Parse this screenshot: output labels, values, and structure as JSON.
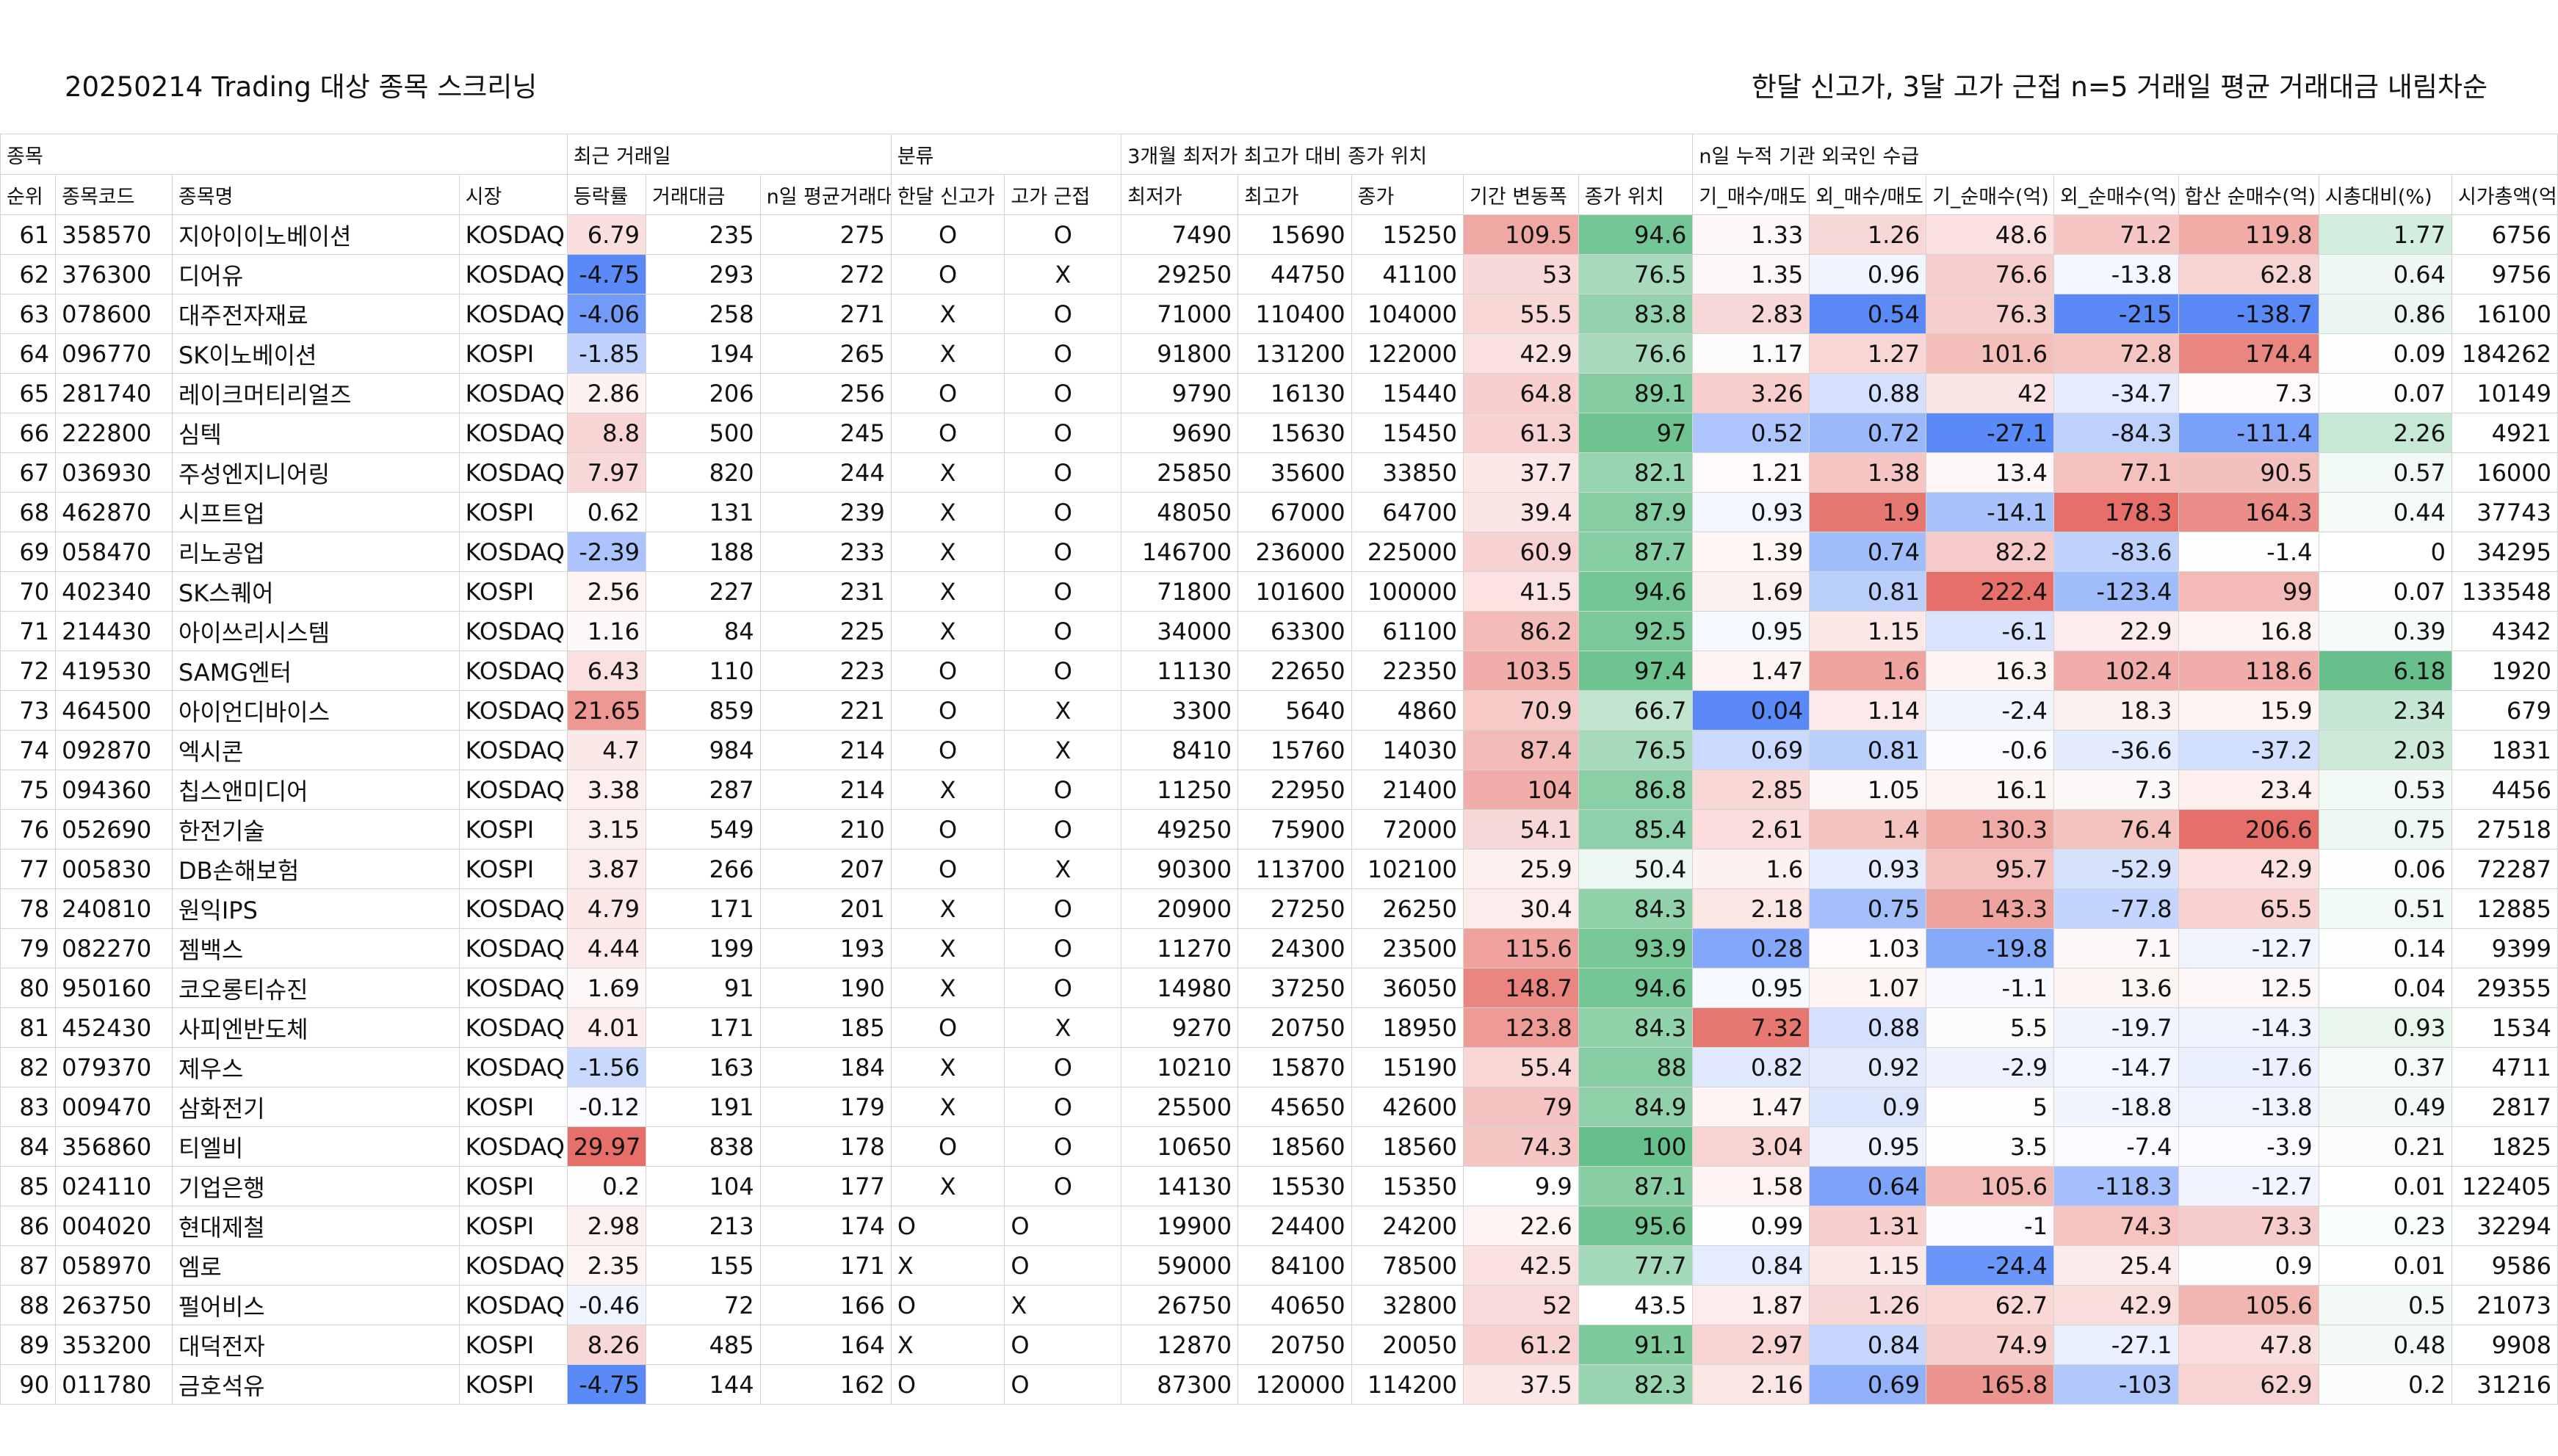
{
  "title_left": "20250214 Trading 대상 종목 스크리닝",
  "title_right": "한달 신고가, 3달 고가 근접 n=5 거래일 평균 거래대금 내림차순",
  "groups": [
    {
      "label": "종목",
      "span": 4
    },
    {
      "label": "최근 거래일",
      "span": 3
    },
    {
      "label": "분류",
      "span": 2
    },
    {
      "label": "3개월 최저가 최고가 대비 종가 위치",
      "span": 5
    },
    {
      "label": "n일 누적 기관 외국인 수급",
      "span": 7
    }
  ],
  "columns": [
    "순위",
    "종목코드",
    "종목명",
    "시장",
    "등락률",
    "거래대금",
    "n일 평균거래대금",
    "한달 신고가",
    "고가 근접",
    "최저가",
    "최고가",
    "종가",
    "기간 변동폭",
    "종가 위치",
    "기_매수/매도",
    "외_매수/매도",
    "기_순매수(억)",
    "외_순매수(억)",
    "합산 순매수(억)",
    "시총대비(%)",
    "시가총액(억)"
  ],
  "rows": [
    [
      "61",
      "358570",
      "지아이이노베이션",
      "KOSDAQ",
      "6.79",
      "235",
      "275",
      "O",
      "O",
      "7490",
      "15690",
      "15250",
      "109.5",
      "94.6",
      "1.33",
      "1.26",
      "48.6",
      "71.2",
      "119.8",
      "1.77",
      "6756"
    ],
    [
      "62",
      "376300",
      "디어유",
      "KOSDAQ",
      "-4.75",
      "293",
      "272",
      "O",
      "X",
      "29250",
      "44750",
      "41100",
      "53",
      "76.5",
      "1.35",
      "0.96",
      "76.6",
      "-13.8",
      "62.8",
      "0.64",
      "9756"
    ],
    [
      "63",
      "078600",
      "대주전자재료",
      "KOSDAQ",
      "-4.06",
      "258",
      "271",
      "X",
      "O",
      "71000",
      "110400",
      "104000",
      "55.5",
      "83.8",
      "2.83",
      "0.54",
      "76.3",
      "-215",
      "-138.7",
      "0.86",
      "16100"
    ],
    [
      "64",
      "096770",
      "SK이노베이션",
      "KOSPI",
      "-1.85",
      "194",
      "265",
      "X",
      "O",
      "91800",
      "131200",
      "122000",
      "42.9",
      "76.6",
      "1.17",
      "1.27",
      "101.6",
      "72.8",
      "174.4",
      "0.09",
      "184262"
    ],
    [
      "65",
      "281740",
      "레이크머티리얼즈",
      "KOSDAQ",
      "2.86",
      "206",
      "256",
      "O",
      "O",
      "9790",
      "16130",
      "15440",
      "64.8",
      "89.1",
      "3.26",
      "0.88",
      "42",
      "-34.7",
      "7.3",
      "0.07",
      "10149"
    ],
    [
      "66",
      "222800",
      "심텍",
      "KOSDAQ",
      "8.8",
      "500",
      "245",
      "O",
      "O",
      "9690",
      "15630",
      "15450",
      "61.3",
      "97",
      "0.52",
      "0.72",
      "-27.1",
      "-84.3",
      "-111.4",
      "2.26",
      "4921"
    ],
    [
      "67",
      "036930",
      "주성엔지니어링",
      "KOSDAQ",
      "7.97",
      "820",
      "244",
      "X",
      "O",
      "25850",
      "35600",
      "33850",
      "37.7",
      "82.1",
      "1.21",
      "1.38",
      "13.4",
      "77.1",
      "90.5",
      "0.57",
      "16000"
    ],
    [
      "68",
      "462870",
      "시프트업",
      "KOSPI",
      "0.62",
      "131",
      "239",
      "X",
      "O",
      "48050",
      "67000",
      "64700",
      "39.4",
      "87.9",
      "0.93",
      "1.9",
      "-14.1",
      "178.3",
      "164.3",
      "0.44",
      "37743"
    ],
    [
      "69",
      "058470",
      "리노공업",
      "KOSDAQ",
      "-2.39",
      "188",
      "233",
      "X",
      "O",
      "146700",
      "236000",
      "225000",
      "60.9",
      "87.7",
      "1.39",
      "0.74",
      "82.2",
      "-83.6",
      "-1.4",
      "0",
      "34295"
    ],
    [
      "70",
      "402340",
      "SK스퀘어",
      "KOSPI",
      "2.56",
      "227",
      "231",
      "X",
      "O",
      "71800",
      "101600",
      "100000",
      "41.5",
      "94.6",
      "1.69",
      "0.81",
      "222.4",
      "-123.4",
      "99",
      "0.07",
      "133548"
    ],
    [
      "71",
      "214430",
      "아이쓰리시스템",
      "KOSDAQ",
      "1.16",
      "84",
      "225",
      "X",
      "O",
      "34000",
      "63300",
      "61100",
      "86.2",
      "92.5",
      "0.95",
      "1.15",
      "-6.1",
      "22.9",
      "16.8",
      "0.39",
      "4342"
    ],
    [
      "72",
      "419530",
      "SAMG엔터",
      "KOSDAQ",
      "6.43",
      "110",
      "223",
      "O",
      "O",
      "11130",
      "22650",
      "22350",
      "103.5",
      "97.4",
      "1.47",
      "1.6",
      "16.3",
      "102.4",
      "118.6",
      "6.18",
      "1920"
    ],
    [
      "73",
      "464500",
      "아이언디바이스",
      "KOSDAQ",
      "21.65",
      "859",
      "221",
      "O",
      "X",
      "3300",
      "5640",
      "4860",
      "70.9",
      "66.7",
      "0.04",
      "1.14",
      "-2.4",
      "18.3",
      "15.9",
      "2.34",
      "679"
    ],
    [
      "74",
      "092870",
      "엑시콘",
      "KOSDAQ",
      "4.7",
      "984",
      "214",
      "O",
      "X",
      "8410",
      "15760",
      "14030",
      "87.4",
      "76.5",
      "0.69",
      "0.81",
      "-0.6",
      "-36.6",
      "-37.2",
      "2.03",
      "1831"
    ],
    [
      "75",
      "094360",
      "칩스앤미디어",
      "KOSDAQ",
      "3.38",
      "287",
      "214",
      "X",
      "O",
      "11250",
      "22950",
      "21400",
      "104",
      "86.8",
      "2.85",
      "1.05",
      "16.1",
      "7.3",
      "23.4",
      "0.53",
      "4456"
    ],
    [
      "76",
      "052690",
      "한전기술",
      "KOSPI",
      "3.15",
      "549",
      "210",
      "O",
      "O",
      "49250",
      "75900",
      "72000",
      "54.1",
      "85.4",
      "2.61",
      "1.4",
      "130.3",
      "76.4",
      "206.6",
      "0.75",
      "27518"
    ],
    [
      "77",
      "005830",
      "DB손해보험",
      "KOSPI",
      "3.87",
      "266",
      "207",
      "O",
      "X",
      "90300",
      "113700",
      "102100",
      "25.9",
      "50.4",
      "1.6",
      "0.93",
      "95.7",
      "-52.9",
      "42.9",
      "0.06",
      "72287"
    ],
    [
      "78",
      "240810",
      "원익IPS",
      "KOSDAQ",
      "4.79",
      "171",
      "201",
      "X",
      "O",
      "20900",
      "27250",
      "26250",
      "30.4",
      "84.3",
      "2.18",
      "0.75",
      "143.3",
      "-77.8",
      "65.5",
      "0.51",
      "12885"
    ],
    [
      "79",
      "082270",
      "젬백스",
      "KOSDAQ",
      "4.44",
      "199",
      "193",
      "X",
      "O",
      "11270",
      "24300",
      "23500",
      "115.6",
      "93.9",
      "0.28",
      "1.03",
      "-19.8",
      "7.1",
      "-12.7",
      "0.14",
      "9399"
    ],
    [
      "80",
      "950160",
      "코오롱티슈진",
      "KOSDAQ",
      "1.69",
      "91",
      "190",
      "X",
      "O",
      "14980",
      "37250",
      "36050",
      "148.7",
      "94.6",
      "0.95",
      "1.07",
      "-1.1",
      "13.6",
      "12.5",
      "0.04",
      "29355"
    ],
    [
      "81",
      "452430",
      "사피엔반도체",
      "KOSDAQ",
      "4.01",
      "171",
      "185",
      "O",
      "X",
      "9270",
      "20750",
      "18950",
      "123.8",
      "84.3",
      "7.32",
      "0.88",
      "5.5",
      "-19.7",
      "-14.3",
      "0.93",
      "1534"
    ],
    [
      "82",
      "079370",
      "제우스",
      "KOSDAQ",
      "-1.56",
      "163",
      "184",
      "X",
      "O",
      "10210",
      "15870",
      "15190",
      "55.4",
      "88",
      "0.82",
      "0.92",
      "-2.9",
      "-14.7",
      "-17.6",
      "0.37",
      "4711"
    ],
    [
      "83",
      "009470",
      "삼화전기",
      "KOSPI",
      "-0.12",
      "191",
      "179",
      "X",
      "O",
      "25500",
      "45650",
      "42600",
      "79",
      "84.9",
      "1.47",
      "0.9",
      "5",
      "-18.8",
      "-13.8",
      "0.49",
      "2817"
    ],
    [
      "84",
      "356860",
      "티엘비",
      "KOSDAQ",
      "29.97",
      "838",
      "178",
      "O",
      "O",
      "10650",
      "18560",
      "18560",
      "74.3",
      "100",
      "3.04",
      "0.95",
      "3.5",
      "-7.4",
      "-3.9",
      "0.21",
      "1825"
    ],
    [
      "85",
      "024110",
      "기업은행",
      "KOSPI",
      "0.2",
      "104",
      "177",
      "X",
      "O",
      "14130",
      "15530",
      "15350",
      "9.9",
      "87.1",
      "1.58",
      "0.64",
      "105.6",
      "-118.3",
      "-12.7",
      "0.01",
      "122405"
    ],
    [
      "86",
      "004020",
      "현대제철",
      "KOSPI",
      "2.98",
      "213",
      "174",
      "O",
      "O",
      "19900",
      "24400",
      "24200",
      "22.6",
      "95.6",
      "0.99",
      "1.31",
      "-1",
      "74.3",
      "73.3",
      "0.23",
      "32294"
    ],
    [
      "87",
      "058970",
      "엠로",
      "KOSDAQ",
      "2.35",
      "155",
      "171",
      "X",
      "O",
      "59000",
      "84100",
      "78500",
      "42.5",
      "77.7",
      "0.84",
      "1.15",
      "-24.4",
      "25.4",
      "0.9",
      "0.01",
      "9586"
    ],
    [
      "88",
      "263750",
      "펄어비스",
      "KOSDAQ",
      "-0.46",
      "72",
      "166",
      "O",
      "X",
      "26750",
      "40650",
      "32800",
      "52",
      "43.5",
      "1.87",
      "1.26",
      "62.7",
      "42.9",
      "105.6",
      "0.5",
      "21073"
    ],
    [
      "89",
      "353200",
      "대덕전자",
      "KOSPI",
      "8.26",
      "485",
      "164",
      "X",
      "O",
      "12870",
      "20750",
      "20050",
      "61.2",
      "91.1",
      "2.97",
      "0.84",
      "74.9",
      "-27.1",
      "47.8",
      "0.48",
      "9908"
    ],
    [
      "90",
      "011780",
      "금호석유",
      "KOSPI",
      "-4.75",
      "144",
      "162",
      "O",
      "O",
      "87300",
      "120000",
      "114200",
      "37.5",
      "82.3",
      "2.16",
      "0.69",
      "165.8",
      "-103",
      "62.9",
      "0.2",
      "31216"
    ]
  ]
}
